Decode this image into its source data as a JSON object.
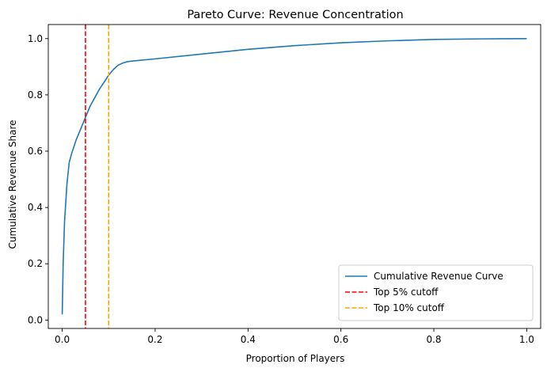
{
  "chart_data": {
    "type": "line",
    "title": "Pareto Curve: Revenue Concentration",
    "xlabel": "Proportion of Players",
    "ylabel": "Cumulative Revenue Share",
    "xlim": [
      -0.03,
      1.03
    ],
    "ylim": [
      -0.03,
      1.05
    ],
    "xticks": [
      0.0,
      0.2,
      0.4,
      0.6,
      0.8,
      1.0
    ],
    "xtick_labels": [
      "0.0",
      "0.2",
      "0.4",
      "0.6",
      "0.8",
      "1.0"
    ],
    "yticks": [
      0.0,
      0.2,
      0.4,
      0.6,
      0.8,
      1.0
    ],
    "ytick_labels": [
      "0.0",
      "0.2",
      "0.4",
      "0.6",
      "0.8",
      "1.0"
    ],
    "grid": false,
    "legend_position": "lower-right",
    "series": [
      {
        "name": "Cumulative Revenue Curve",
        "color": "#1f77b4",
        "style": "solid",
        "x": [
          0.0,
          0.002,
          0.005,
          0.01,
          0.015,
          0.02,
          0.03,
          0.04,
          0.05,
          0.06,
          0.07,
          0.08,
          0.09,
          0.1,
          0.11,
          0.12,
          0.13,
          0.14,
          0.15,
          0.2,
          0.3,
          0.4,
          0.5,
          0.6,
          0.7,
          0.8,
          0.9,
          1.0
        ],
        "y": [
          0.02,
          0.2,
          0.35,
          0.48,
          0.56,
          0.59,
          0.64,
          0.68,
          0.72,
          0.76,
          0.79,
          0.82,
          0.845,
          0.87,
          0.89,
          0.905,
          0.913,
          0.918,
          0.92,
          0.928,
          0.945,
          0.962,
          0.975,
          0.985,
          0.992,
          0.997,
          0.999,
          1.0
        ]
      },
      {
        "name": "Top 5% cutoff",
        "color": "#ff0000",
        "style": "dashed",
        "vline_x": 0.05
      },
      {
        "name": "Top 10% cutoff",
        "color": "#ffa500",
        "style": "dashed",
        "vline_x": 0.1
      }
    ]
  }
}
